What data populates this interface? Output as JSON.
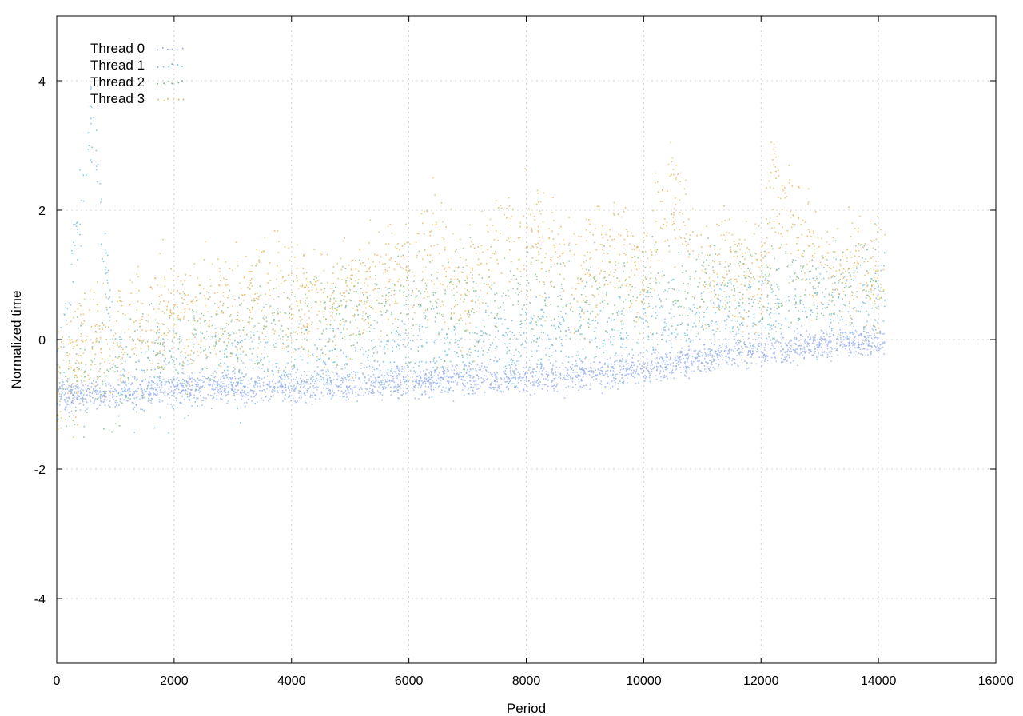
{
  "chart_data": {
    "type": "scatter",
    "title": "",
    "xlabel": "Period",
    "ylabel": "Normalized time",
    "xlim": [
      0,
      16000
    ],
    "ylim": [
      -5,
      5
    ],
    "x_ticks": [
      0,
      2000,
      4000,
      6000,
      8000,
      10000,
      12000,
      14000,
      16000
    ],
    "x_tick_labels": [
      "0",
      "2000",
      "4000",
      "6000",
      "8000",
      "10000",
      "12000",
      "14000",
      "16000"
    ],
    "y_ticks": [
      -4,
      -2,
      0,
      2,
      4
    ],
    "y_tick_labels": [
      "-4",
      "-2",
      "0",
      "2",
      "4"
    ],
    "grid": true,
    "legend_position": "top-left",
    "series": [
      {
        "name": "Thread 0",
        "color": "#8fa8ee",
        "description_points": [
          [
            0,
            -0.85
          ],
          [
            1000,
            -0.8
          ],
          [
            2000,
            -0.75
          ],
          [
            3000,
            -0.72
          ],
          [
            4000,
            -0.7
          ],
          [
            5000,
            -0.68
          ],
          [
            6000,
            -0.62
          ],
          [
            7000,
            -0.6
          ],
          [
            8000,
            -0.58
          ],
          [
            9000,
            -0.5
          ],
          [
            10000,
            -0.45
          ],
          [
            11000,
            -0.25
          ],
          [
            12000,
            -0.15
          ],
          [
            13000,
            -0.05
          ],
          [
            14000,
            0.0
          ],
          [
            14100,
            -0.05
          ]
        ]
      },
      {
        "name": "Thread 1",
        "color": "#62b6e0",
        "description_points": [
          [
            0,
            -0.8
          ],
          [
            300,
            1.5
          ],
          [
            600,
            3.5
          ],
          [
            1000,
            -0.6
          ],
          [
            2000,
            -0.5
          ],
          [
            3000,
            -0.4
          ],
          [
            4000,
            -0.3
          ],
          [
            5000,
            -0.2
          ],
          [
            6000,
            -0.1
          ],
          [
            7000,
            -0.05
          ],
          [
            8000,
            0.0
          ],
          [
            9000,
            0.1
          ],
          [
            10000,
            0.2
          ],
          [
            11000,
            0.35
          ],
          [
            12000,
            0.45
          ],
          [
            13000,
            0.55
          ],
          [
            14100,
            0.6
          ]
        ]
      },
      {
        "name": "Thread 2",
        "color": "#6fb57a",
        "description_points": [
          [
            0,
            -0.75
          ],
          [
            1000,
            -0.4
          ],
          [
            2000,
            -0.1
          ],
          [
            3000,
            0.1
          ],
          [
            4000,
            0.3
          ],
          [
            5000,
            0.4
          ],
          [
            6000,
            0.45
          ],
          [
            7000,
            0.5
          ],
          [
            8000,
            0.55
          ],
          [
            9000,
            0.6
          ],
          [
            10000,
            0.7
          ],
          [
            11000,
            0.75
          ],
          [
            12000,
            0.8
          ],
          [
            13000,
            0.85
          ],
          [
            14100,
            0.9
          ]
        ]
      },
      {
        "name": "Thread 3",
        "color": "#e0b24a",
        "description_points": [
          [
            0,
            -0.7
          ],
          [
            500,
            -0.2
          ],
          [
            1000,
            0.1
          ],
          [
            1500,
            0.3
          ],
          [
            2000,
            0.4
          ],
          [
            2500,
            0.5
          ],
          [
            3000,
            0.6
          ],
          [
            3500,
            0.8
          ],
          [
            4000,
            0.5
          ],
          [
            5000,
            0.7
          ],
          [
            6000,
            1.2
          ],
          [
            6500,
            1.3
          ],
          [
            7000,
            0.7
          ],
          [
            7500,
            1.5
          ],
          [
            8000,
            1.6
          ],
          [
            8500,
            1.4
          ],
          [
            9000,
            0.9
          ],
          [
            9500,
            1.5
          ],
          [
            10000,
            0.9
          ],
          [
            10400,
            2.4
          ],
          [
            11000,
            1.0
          ],
          [
            12000,
            1.0
          ],
          [
            12200,
            2.3
          ],
          [
            13000,
            1.1
          ],
          [
            14100,
            1.0
          ]
        ]
      }
    ]
  }
}
